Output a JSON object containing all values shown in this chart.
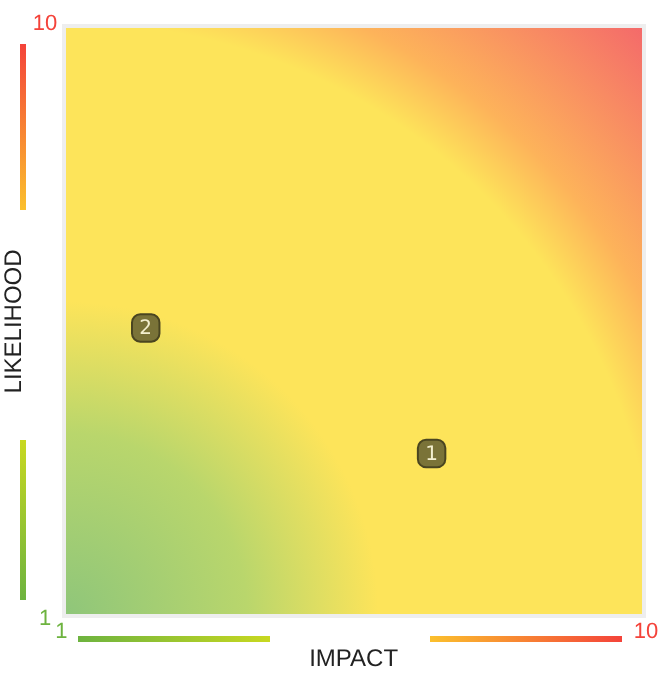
{
  "chart_data": {
    "type": "scatter",
    "xlabel": "IMPACT",
    "ylabel": "LIKELIHOOD",
    "xlim": [
      1,
      10
    ],
    "xticks": [
      1,
      10
    ],
    "ylim": [
      1,
      10
    ],
    "yticks": [
      1,
      10
    ],
    "grid": false,
    "legend": false,
    "marker": "square",
    "series": [
      {
        "name": "1",
        "color": "#7a7338",
        "x": [
          6.7
        ],
        "values": [
          3.5
        ]
      },
      {
        "name": "2",
        "color": "#7a7338",
        "x": [
          2.3
        ],
        "values": [
          5.4
        ]
      }
    ]
  }
}
